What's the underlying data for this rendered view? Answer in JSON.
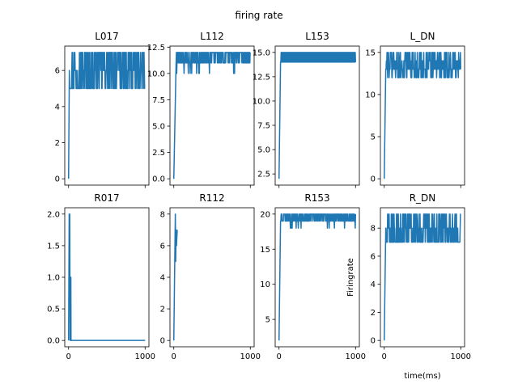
{
  "figure": {
    "title": "firing rate",
    "line_color": "#1f77b4"
  },
  "chart_data": [
    {
      "type": "line",
      "title": "L017",
      "xlabel": "",
      "ylabel": "",
      "xlim": [
        -50,
        1050
      ],
      "ylim": [
        -0.35,
        7.35
      ],
      "yticks": [
        0,
        2,
        4,
        6
      ],
      "xticks": [
        0,
        1000
      ],
      "show_xticklabels": false,
      "series": [
        {
          "x": [
            0,
            10
          ],
          "y": [
            0,
            6
          ],
          "rise_to": 6,
          "levels": [
            5,
            6,
            7
          ],
          "noise": "dense",
          "settle_x": 10,
          "duration": 1000
        }
      ]
    },
    {
      "type": "line",
      "title": "L112",
      "xlabel": "",
      "ylabel": "",
      "xlim": [
        -50,
        1050
      ],
      "ylim": [
        -0.6,
        12.6
      ],
      "yticks": [
        0.0,
        2.5,
        5.0,
        7.5,
        10.0,
        12.5
      ],
      "xticks": [
        0,
        1000
      ],
      "show_xticklabels": false,
      "series": [
        {
          "x": [
            0,
            30
          ],
          "y": [
            0,
            11
          ],
          "rise_to": 11,
          "levels": [
            10,
            11,
            12
          ],
          "noise": "upper",
          "settle_x": 30,
          "duration": 1000
        }
      ]
    },
    {
      "type": "line",
      "title": "L153",
      "xlabel": "",
      "ylabel": "",
      "xlim": [
        -50,
        1050
      ],
      "ylim": [
        1.35,
        15.65
      ],
      "yticks": [
        2.5,
        5.0,
        7.5,
        10.0,
        12.5,
        15.0
      ],
      "xticks": [
        0,
        1000
      ],
      "show_xticklabels": false,
      "series": [
        {
          "x": [
            0,
            20
          ],
          "y": [
            2,
            14
          ],
          "rise_to": 14,
          "levels": [
            14,
            15
          ],
          "noise": "solid",
          "settle_x": 20,
          "duration": 1000
        }
      ]
    },
    {
      "type": "line",
      "title": "L_DN",
      "xlabel": "",
      "ylabel": "",
      "xlim": [
        -50,
        1050
      ],
      "ylim": [
        -0.75,
        15.75
      ],
      "yticks": [
        0,
        5,
        10,
        15
      ],
      "xticks": [
        0,
        1000
      ],
      "show_xticklabels": false,
      "series": [
        {
          "x": [
            0,
            20
          ],
          "y": [
            0,
            13
          ],
          "rise_to": 13,
          "levels": [
            12,
            13,
            14,
            15
          ],
          "noise": "dense",
          "settle_x": 20,
          "duration": 1000
        }
      ]
    },
    {
      "type": "line",
      "title": "R017",
      "xlabel": "",
      "ylabel": "",
      "xlim": [
        -50,
        1050
      ],
      "ylim": [
        -0.1,
        2.1
      ],
      "yticks": [
        0.0,
        0.5,
        1.0,
        1.5,
        2.0
      ],
      "xticks": [
        0,
        1000
      ],
      "show_xticklabels": true,
      "series": [
        {
          "x": [
            0,
            8,
            15,
            20,
            25,
            30,
            32,
            1000
          ],
          "y": [
            0,
            2,
            2,
            0,
            1,
            1,
            0,
            0
          ],
          "rise_to": 0,
          "levels": [
            0
          ],
          "noise": "none",
          "settle_x": 32,
          "duration": 1000
        }
      ]
    },
    {
      "type": "line",
      "title": "R112",
      "xlabel": "",
      "ylabel": "",
      "xlim": [
        -50,
        1050
      ],
      "ylim": [
        -0.4,
        8.4
      ],
      "yticks": [
        0,
        2,
        4,
        6,
        8
      ],
      "xticks": [
        0,
        1000
      ],
      "show_xticklabels": true,
      "series": [
        {
          "x": [
            0,
            20,
            25,
            30,
            35,
            45
          ],
          "y": [
            0,
            8,
            5,
            7,
            6,
            7
          ],
          "rise_to": 6,
          "levels": [
            6,
            7
          ],
          "noise": "solid",
          "settle_x": 45,
          "duration": 1000
        }
      ]
    },
    {
      "type": "line",
      "title": "R153",
      "xlabel": "",
      "ylabel": "",
      "xlim": [
        -50,
        1050
      ],
      "ylim": [
        1.1,
        20.9
      ],
      "yticks": [
        5,
        10,
        15,
        20
      ],
      "xticks": [
        0,
        1000
      ],
      "show_xticklabels": true,
      "series": [
        {
          "x": [
            0,
            20
          ],
          "y": [
            2,
            19
          ],
          "rise_to": 19,
          "levels": [
            18,
            19,
            20
          ],
          "noise": "upper",
          "settle_x": 20,
          "duration": 1000
        }
      ]
    },
    {
      "type": "line",
      "title": "R_DN",
      "xlabel": "time(ms)",
      "ylabel": "Firingrate",
      "xlim": [
        -50,
        1050
      ],
      "ylim": [
        -0.45,
        9.45
      ],
      "yticks": [
        0,
        2,
        4,
        6,
        8
      ],
      "xticks": [
        0,
        1000
      ],
      "show_xticklabels": true,
      "series": [
        {
          "x": [
            0,
            20
          ],
          "y": [
            0,
            8
          ],
          "rise_to": 8,
          "levels": [
            7,
            8,
            9
          ],
          "noise": "dense",
          "settle_x": 20,
          "duration": 1000
        }
      ]
    }
  ]
}
